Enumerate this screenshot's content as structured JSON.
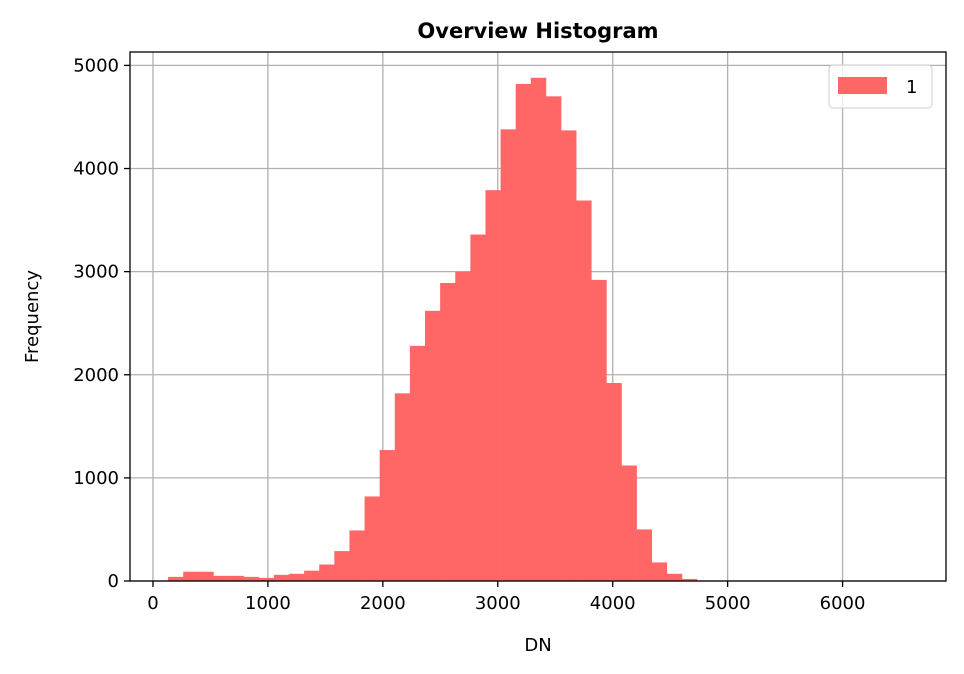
{
  "chart_data": {
    "type": "bar",
    "title": "Overview Histogram",
    "xlabel": "DN",
    "ylabel": "Frequency",
    "xlim": [
      -200,
      6900
    ],
    "ylim": [
      0,
      5130
    ],
    "xticks": [
      0,
      1000,
      2000,
      3000,
      4000,
      5000,
      6000
    ],
    "yticks": [
      0,
      1000,
      2000,
      3000,
      4000,
      5000
    ],
    "grid": true,
    "legend_position": "top-right",
    "bin_width": 131.5,
    "series": [
      {
        "name": "1",
        "color": "#ff6666",
        "bins": [
          {
            "x0": 131.5,
            "x1": 263,
            "value": 40
          },
          {
            "x0": 263,
            "x1": 394.5,
            "value": 90
          },
          {
            "x0": 394.5,
            "x1": 526,
            "value": 90
          },
          {
            "x0": 526,
            "x1": 657.5,
            "value": 50
          },
          {
            "x0": 657.5,
            "x1": 789,
            "value": 50
          },
          {
            "x0": 789,
            "x1": 920.5,
            "value": 40
          },
          {
            "x0": 920.5,
            "x1": 1052,
            "value": 30
          },
          {
            "x0": 1052,
            "x1": 1183.5,
            "value": 60
          },
          {
            "x0": 1183.5,
            "x1": 1315,
            "value": 70
          },
          {
            "x0": 1315,
            "x1": 1446.5,
            "value": 100
          },
          {
            "x0": 1446.5,
            "x1": 1578,
            "value": 160
          },
          {
            "x0": 1578,
            "x1": 1709.5,
            "value": 290
          },
          {
            "x0": 1709.5,
            "x1": 1841,
            "value": 490
          },
          {
            "x0": 1841,
            "x1": 1972.5,
            "value": 820
          },
          {
            "x0": 1972.5,
            "x1": 2104,
            "value": 1270
          },
          {
            "x0": 2104,
            "x1": 2235.5,
            "value": 1820
          },
          {
            "x0": 2235.5,
            "x1": 2367,
            "value": 2280
          },
          {
            "x0": 2367,
            "x1": 2498.5,
            "value": 2620
          },
          {
            "x0": 2498.5,
            "x1": 2630,
            "value": 2890
          },
          {
            "x0": 2630,
            "x1": 2761.5,
            "value": 3000
          },
          {
            "x0": 2761.5,
            "x1": 2893,
            "value": 3360
          },
          {
            "x0": 2893,
            "x1": 3024.5,
            "value": 3790
          },
          {
            "x0": 3024.5,
            "x1": 3156,
            "value": 4380
          },
          {
            "x0": 3156,
            "x1": 3287.5,
            "value": 4820
          },
          {
            "x0": 3287.5,
            "x1": 3419,
            "value": 4880
          },
          {
            "x0": 3419,
            "x1": 3550.5,
            "value": 4700
          },
          {
            "x0": 3550.5,
            "x1": 3682,
            "value": 4370
          },
          {
            "x0": 3682,
            "x1": 3813.5,
            "value": 3690
          },
          {
            "x0": 3813.5,
            "x1": 3945,
            "value": 2920
          },
          {
            "x0": 3945,
            "x1": 4076.5,
            "value": 1920
          },
          {
            "x0": 4076.5,
            "x1": 4208,
            "value": 1120
          },
          {
            "x0": 4208,
            "x1": 4339.5,
            "value": 500
          },
          {
            "x0": 4339.5,
            "x1": 4471,
            "value": 180
          },
          {
            "x0": 4471,
            "x1": 4602.5,
            "value": 70
          },
          {
            "x0": 4602.5,
            "x1": 4734,
            "value": 20
          }
        ]
      }
    ]
  }
}
